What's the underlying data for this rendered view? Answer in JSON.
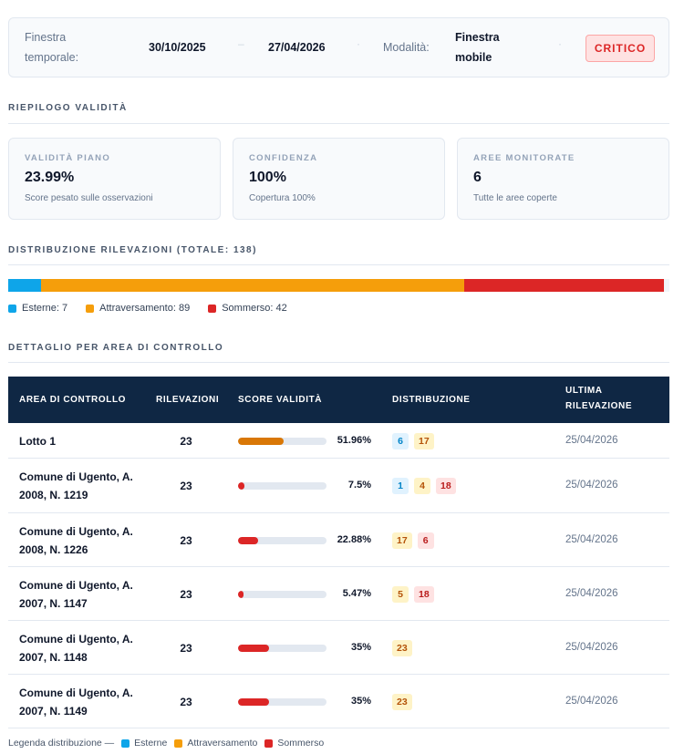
{
  "header": {
    "window_label_l1": "Finestra",
    "window_label_l2": "temporale:",
    "date_from": "30/10/2025",
    "dash": "–",
    "date_to": "27/04/2026",
    "dot": "·",
    "mode_label": "Modalità:",
    "mode_value_l1": "Finestra",
    "mode_value_l2": "mobile",
    "status_badge": "CRITICO"
  },
  "summary": {
    "title": "RIEPILOGO VALIDITÀ",
    "cards": [
      {
        "label": "VALIDITÀ PIANO",
        "value": "23.99%",
        "sub": "Score pesato sulle osservazioni"
      },
      {
        "label": "CONFIDENZA",
        "value": "100%",
        "sub": "Copertura 100%"
      },
      {
        "label": "AREE MONITORATE",
        "value": "6",
        "sub": "Tutte le aree coperte"
      }
    ]
  },
  "distribution": {
    "title": "DISTRIBUZIONE RILEVAZIONI (TOTALE: 138)",
    "total": 138,
    "segments": [
      {
        "name": "Esterne",
        "value": 7,
        "color": "#0ea5e9",
        "legend": "Esterne: 7"
      },
      {
        "name": "Attraversamento",
        "value": 89,
        "color": "#f59e0b",
        "legend": "Attraversamento: 89"
      },
      {
        "name": "Sommerso",
        "value": 42,
        "color": "#dc2626",
        "legend": "Sommerso: 42"
      }
    ]
  },
  "detail": {
    "title": "DETTAGLIO PER AREA DI CONTROLLO",
    "columns": {
      "area": "AREA DI CONTROLLO",
      "count": "RILEVAZIONI",
      "score": "SCORE VALIDITÀ",
      "dist": "DISTRIBUZIONE",
      "last_l1": "ULTIMA",
      "last_l2": "RILEVAZIONE"
    },
    "rows": [
      {
        "area_l1": "Lotto 1",
        "area_l2": "",
        "count": "23",
        "score": 51.96,
        "score_label": "51.96%",
        "bar_color": "#d97706",
        "chips": [
          {
            "t": "est",
            "v": "6"
          },
          {
            "t": "att",
            "v": "17"
          }
        ],
        "date": "25/04/2026"
      },
      {
        "area_l1": "Comune di Ugento, A.",
        "area_l2": "2008, N. 1219",
        "count": "23",
        "score": 7.5,
        "score_label": "7.5%",
        "bar_color": "#dc2626",
        "chips": [
          {
            "t": "est",
            "v": "1"
          },
          {
            "t": "att",
            "v": "4"
          },
          {
            "t": "som",
            "v": "18"
          }
        ],
        "date": "25/04/2026"
      },
      {
        "area_l1": "Comune di Ugento, A.",
        "area_l2": "2008, N. 1226",
        "count": "23",
        "score": 22.88,
        "score_label": "22.88%",
        "bar_color": "#dc2626",
        "chips": [
          {
            "t": "att",
            "v": "17"
          },
          {
            "t": "som",
            "v": "6"
          }
        ],
        "date": "25/04/2026"
      },
      {
        "area_l1": "Comune di Ugento, A.",
        "area_l2": "2007, N. 1147",
        "count": "23",
        "score": 5.47,
        "score_label": "5.47%",
        "bar_color": "#dc2626",
        "chips": [
          {
            "t": "att",
            "v": "5"
          },
          {
            "t": "som",
            "v": "18"
          }
        ],
        "date": "25/04/2026"
      },
      {
        "area_l1": "Comune di Ugento, A.",
        "area_l2": "2007, N. 1148",
        "count": "23",
        "score": 35,
        "score_label": "35%",
        "bar_color": "#dc2626",
        "chips": [
          {
            "t": "att",
            "v": "23"
          }
        ],
        "date": "25/04/2026"
      },
      {
        "area_l1": "Comune di Ugento, A.",
        "area_l2": "2007, N. 1149",
        "count": "23",
        "score": 35,
        "score_label": "35%",
        "bar_color": "#dc2626",
        "chips": [
          {
            "t": "att",
            "v": "23"
          }
        ],
        "date": "25/04/2026"
      }
    ]
  },
  "footer_legend": {
    "prefix": "Legenda distribuzione —",
    "items": [
      {
        "label": "Esterne",
        "color": "#0ea5e9"
      },
      {
        "label": "Attraversamento",
        "color": "#f59e0b"
      },
      {
        "label": "Sommerso",
        "color": "#dc2626"
      }
    ]
  }
}
